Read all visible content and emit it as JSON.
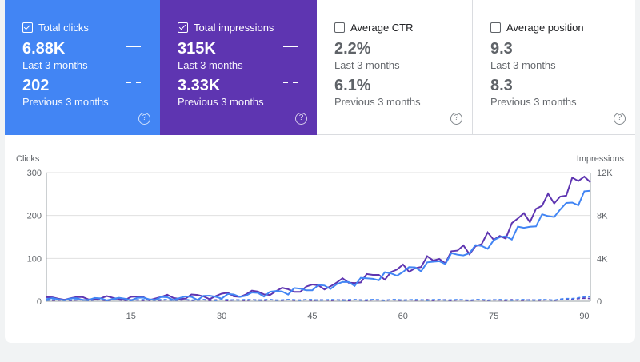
{
  "cards": [
    {
      "label": "Total clicks",
      "checked": true,
      "value1": "6.88K",
      "sub1": "Last 3 months",
      "value2": "202",
      "sub2": "Previous 3 months"
    },
    {
      "label": "Total impressions",
      "checked": true,
      "value1": "315K",
      "sub1": "Last 3 months",
      "value2": "3.33K",
      "sub2": "Previous 3 months"
    },
    {
      "label": "Average CTR",
      "checked": false,
      "value1": "2.2%",
      "sub1": "Last 3 months",
      "value2": "6.1%",
      "sub2": "Previous 3 months"
    },
    {
      "label": "Average position",
      "checked": false,
      "value1": "9.3",
      "sub1": "Last 3 months",
      "value2": "8.3",
      "sub2": "Previous 3 months"
    }
  ],
  "help_icon": "?",
  "colors": {
    "clicks": "#4285f4",
    "impressions": "#5e35b1",
    "grid": "#e0e0e0"
  },
  "chart_data": {
    "type": "line",
    "xlabel": "",
    "ylabel_left": "Clicks",
    "ylabel_right": "Impressions",
    "ylim_left": [
      0,
      300
    ],
    "ylim_right": [
      0,
      12000
    ],
    "yticks_left": [
      "0",
      "100",
      "200",
      "300"
    ],
    "yticks_right": [
      "0",
      "4K",
      "8K",
      "12K"
    ],
    "xticks": [
      "15",
      "30",
      "45",
      "60",
      "75",
      "90"
    ],
    "xlim": [
      1,
      91
    ],
    "series": [
      {
        "axis": "left",
        "style": "solid",
        "color": "#4285f4",
        "values": [
          5,
          8,
          10,
          22,
          16,
          14,
          18,
          12,
          15,
          10,
          12,
          11,
          14,
          16,
          12,
          10,
          13,
          20,
          22,
          18,
          15,
          20,
          22,
          18,
          25,
          27,
          25,
          30,
          25,
          28,
          35,
          30,
          28,
          42,
          35,
          38,
          30,
          37,
          48,
          40,
          45,
          50,
          42,
          38,
          45,
          40,
          50,
          36,
          48,
          40,
          52,
          55,
          65,
          60,
          55,
          55,
          60,
          62,
          55,
          50,
          50,
          55,
          68,
          60,
          70,
          75,
          88,
          90,
          100,
          80,
          95,
          90,
          110,
          100,
          92,
          96,
          88,
          85,
          90,
          110,
          130,
          125,
          110,
          100,
          120,
          135,
          170,
          150,
          180,
          130,
          140,
          155,
          165,
          175,
          190,
          200,
          195,
          210,
          240,
          230,
          235,
          250,
          255,
          230
        ]
      },
      {
        "axis": "right",
        "style": "solid",
        "color": "#5e35b1",
        "values": []
      },
      {
        "axis": "left",
        "style": "dashed",
        "color": "#4285f4",
        "values": []
      },
      {
        "axis": "right",
        "style": "dashed",
        "color": "#5e35b1",
        "values": []
      }
    ]
  }
}
